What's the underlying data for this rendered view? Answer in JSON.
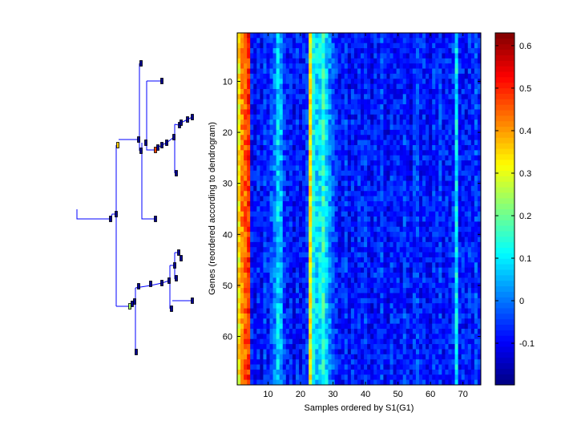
{
  "chart_data": {
    "type": "heatmap",
    "xlabel": "Samples ordered by S1(G1)",
    "ylabel": "Genes (reordered according to dendrogram)",
    "n_rows": 69,
    "n_cols": 75,
    "xticks": [
      10,
      20,
      30,
      40,
      50,
      60,
      70
    ],
    "yticks": [
      10,
      20,
      30,
      40,
      50,
      60
    ],
    "colormap": "jet",
    "clim": [
      -0.198,
      0.63
    ],
    "colorbar_ticks": [
      -0.1,
      0,
      0.1,
      0.2,
      0.3,
      0.4,
      0.5,
      0.6
    ],
    "column_mean_values": [
      0.33,
      0.42,
      0.45,
      0.5,
      -0.08,
      -0.1,
      -0.07,
      -0.1,
      -0.05,
      -0.08,
      -0.03,
      0.0,
      0.08,
      0.05,
      -0.05,
      -0.08,
      -0.07,
      -0.1,
      -0.06,
      -0.09,
      -0.08,
      -0.05,
      0.32,
      0.12,
      0.08,
      0.1,
      0.15,
      0.08,
      0.02,
      -0.03,
      -0.06,
      -0.09,
      -0.08,
      -0.05,
      -0.1,
      -0.07,
      -0.09,
      -0.06,
      -0.08,
      -0.05,
      -0.09,
      -0.1,
      -0.07,
      -0.08,
      -0.04,
      -0.09,
      -0.1,
      -0.06,
      -0.08,
      -0.07,
      -0.09,
      -0.05,
      -0.08,
      -0.1,
      -0.06,
      -0.04,
      -0.08,
      -0.07,
      -0.09,
      -0.1,
      -0.06,
      -0.08,
      -0.05,
      -0.09,
      -0.07,
      -0.08,
      -0.06,
      0.1,
      -0.08,
      -0.07,
      -0.09,
      -0.06,
      -0.08,
      -0.04,
      -0.07
    ],
    "cell_noise_amplitude": 0.06
  },
  "colors": {
    "dendrogram": "#0000ff",
    "leaf_fill": "#00008f",
    "axis": "#000000"
  }
}
